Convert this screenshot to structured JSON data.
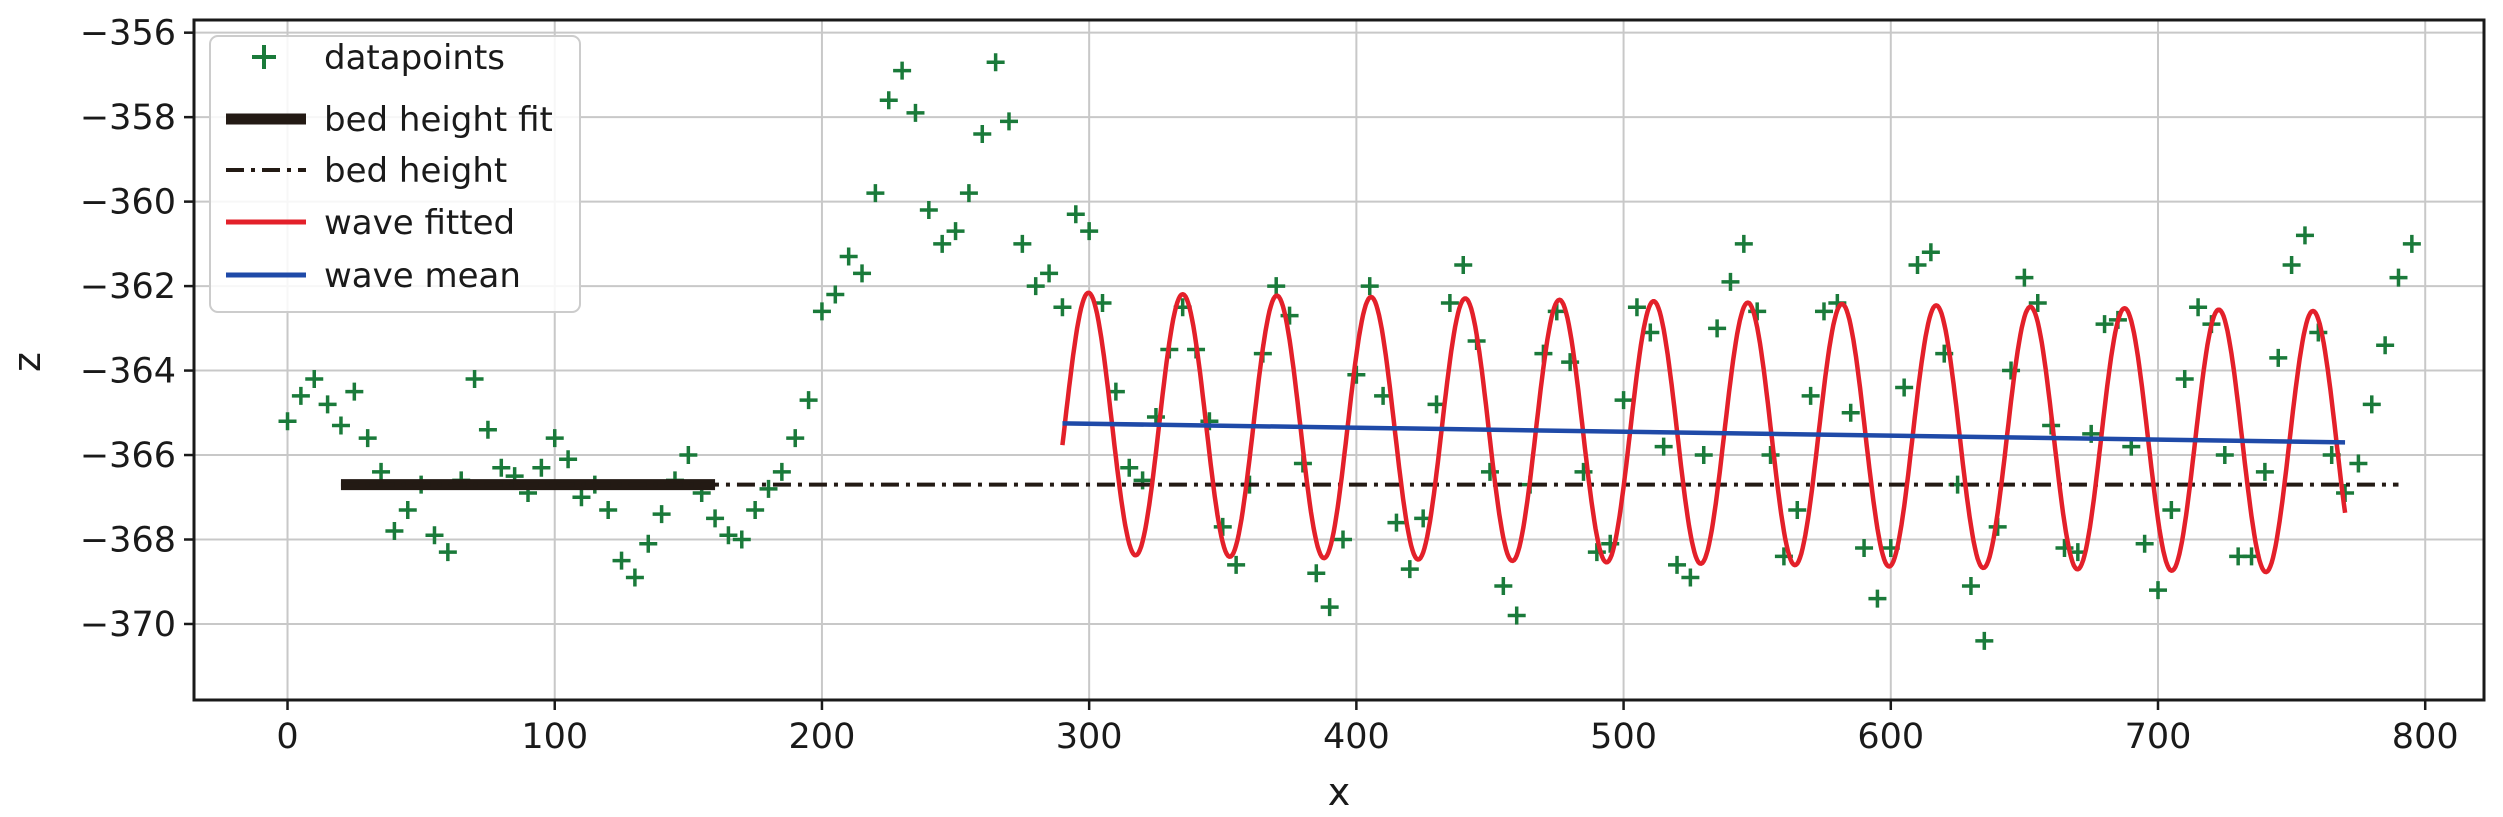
{
  "chart_data": {
    "type": "line",
    "title": "",
    "xlabel": "x",
    "ylabel": "z",
    "xlim": [
      -35,
      822
    ],
    "ylim": [
      -371.8,
      -355.7
    ],
    "xticks": [
      0,
      100,
      200,
      300,
      400,
      500,
      600,
      700,
      800
    ],
    "yticks": [
      -370,
      -368,
      -366,
      -364,
      -362,
      -360,
      -358,
      -356
    ],
    "grid": true,
    "legend_position": "upper-left",
    "series": [
      {
        "name": "datapoints",
        "style": "marker-plus",
        "color": "#1a7a3a",
        "points": [
          [
            0,
            -365.2
          ],
          [
            5,
            -364.6
          ],
          [
            10,
            -364.2
          ],
          [
            15,
            -364.8
          ],
          [
            20,
            -365.3
          ],
          [
            25,
            -364.5
          ],
          [
            30,
            -365.6
          ],
          [
            35,
            -366.4
          ],
          [
            40,
            -367.8
          ],
          [
            45,
            -367.3
          ],
          [
            50,
            -366.7
          ],
          [
            55,
            -367.9
          ],
          [
            60,
            -368.3
          ],
          [
            65,
            -366.6
          ],
          [
            70,
            -364.2
          ],
          [
            75,
            -365.4
          ],
          [
            80,
            -366.3
          ],
          [
            85,
            -366.5
          ],
          [
            90,
            -366.9
          ],
          [
            95,
            -366.3
          ],
          [
            100,
            -365.6
          ],
          [
            105,
            -366.1
          ],
          [
            110,
            -367.0
          ],
          [
            115,
            -366.7
          ],
          [
            120,
            -367.3
          ],
          [
            125,
            -368.5
          ],
          [
            130,
            -368.9
          ],
          [
            135,
            -368.1
          ],
          [
            140,
            -367.4
          ],
          [
            145,
            -366.6
          ],
          [
            150,
            -366.0
          ],
          [
            155,
            -366.9
          ],
          [
            160,
            -367.5
          ],
          [
            165,
            -367.9
          ],
          [
            170,
            -368.0
          ],
          [
            175,
            -367.3
          ],
          [
            180,
            -366.8
          ],
          [
            185,
            -366.4
          ],
          [
            190,
            -365.6
          ],
          [
            195,
            -364.7
          ],
          [
            200,
            -362.6
          ],
          [
            205,
            -362.2
          ],
          [
            210,
            -361.3
          ],
          [
            215,
            -361.7
          ],
          [
            220,
            -359.8
          ],
          [
            225,
            -357.6
          ],
          [
            230,
            -356.9
          ],
          [
            235,
            -357.9
          ],
          [
            240,
            -360.2
          ],
          [
            245,
            -361.0
          ],
          [
            250,
            -360.7
          ],
          [
            255,
            -359.8
          ],
          [
            260,
            -358.4
          ],
          [
            265,
            -356.7
          ],
          [
            270,
            -358.1
          ],
          [
            275,
            -361.0
          ],
          [
            280,
            -362.0
          ],
          [
            285,
            -361.7
          ],
          [
            290,
            -362.5
          ],
          [
            295,
            -360.3
          ],
          [
            300,
            -360.7
          ],
          [
            305,
            -362.4
          ],
          [
            310,
            -364.5
          ],
          [
            315,
            -366.3
          ],
          [
            320,
            -366.6
          ],
          [
            325,
            -365.1
          ],
          [
            330,
            -363.5
          ],
          [
            335,
            -362.5
          ],
          [
            340,
            -363.5
          ],
          [
            345,
            -365.2
          ],
          [
            350,
            -367.7
          ],
          [
            355,
            -368.6
          ],
          [
            360,
            -366.7
          ],
          [
            365,
            -363.6
          ],
          [
            370,
            -362.0
          ],
          [
            375,
            -362.7
          ],
          [
            380,
            -366.2
          ],
          [
            385,
            -368.8
          ],
          [
            390,
            -369.6
          ],
          [
            395,
            -368.0
          ],
          [
            400,
            -364.1
          ],
          [
            405,
            -362.0
          ],
          [
            410,
            -364.6
          ],
          [
            415,
            -367.6
          ],
          [
            420,
            -368.7
          ],
          [
            425,
            -367.5
          ],
          [
            430,
            -364.8
          ],
          [
            435,
            -362.4
          ],
          [
            440,
            -361.5
          ],
          [
            445,
            -363.3
          ],
          [
            450,
            -366.4
          ],
          [
            455,
            -369.1
          ],
          [
            460,
            -369.8
          ],
          [
            465,
            -366.7
          ],
          [
            470,
            -363.6
          ],
          [
            475,
            -362.6
          ],
          [
            480,
            -363.8
          ],
          [
            485,
            -366.4
          ],
          [
            490,
            -368.3
          ],
          [
            495,
            -368.1
          ],
          [
            500,
            -364.7
          ],
          [
            505,
            -362.5
          ],
          [
            510,
            -363.1
          ],
          [
            515,
            -365.8
          ],
          [
            520,
            -368.6
          ],
          [
            525,
            -368.9
          ],
          [
            530,
            -366.0
          ],
          [
            535,
            -363.0
          ],
          [
            540,
            -361.9
          ],
          [
            545,
            -361.0
          ],
          [
            550,
            -362.6
          ],
          [
            555,
            -366.0
          ],
          [
            560,
            -368.4
          ],
          [
            565,
            -367.3
          ],
          [
            570,
            -364.6
          ],
          [
            575,
            -362.6
          ],
          [
            580,
            -362.4
          ],
          [
            585,
            -365.0
          ],
          [
            590,
            -368.2
          ],
          [
            595,
            -369.4
          ],
          [
            600,
            -368.2
          ],
          [
            605,
            -364.4
          ],
          [
            610,
            -361.5
          ],
          [
            615,
            -361.2
          ],
          [
            620,
            -363.6
          ],
          [
            625,
            -366.7
          ],
          [
            630,
            -369.1
          ],
          [
            635,
            -370.4
          ],
          [
            640,
            -367.7
          ],
          [
            645,
            -364.0
          ],
          [
            650,
            -361.8
          ],
          [
            655,
            -362.4
          ],
          [
            660,
            -365.3
          ],
          [
            665,
            -368.2
          ],
          [
            670,
            -368.3
          ],
          [
            675,
            -365.5
          ],
          [
            680,
            -362.9
          ],
          [
            685,
            -362.8
          ],
          [
            690,
            -365.8
          ],
          [
            695,
            -368.1
          ],
          [
            700,
            -369.2
          ],
          [
            705,
            -367.3
          ],
          [
            710,
            -364.2
          ],
          [
            715,
            -362.5
          ],
          [
            720,
            -362.9
          ],
          [
            725,
            -366.0
          ],
          [
            730,
            -368.4
          ],
          [
            735,
            -368.4
          ],
          [
            740,
            -366.4
          ],
          [
            745,
            -363.7
          ],
          [
            750,
            -361.5
          ],
          [
            755,
            -360.8
          ],
          [
            760,
            -363.1
          ],
          [
            765,
            -366.0
          ],
          [
            770,
            -366.9
          ],
          [
            775,
            -366.2
          ],
          [
            780,
            -364.8
          ],
          [
            785,
            -363.4
          ],
          [
            790,
            -361.8
          ],
          [
            795,
            -361.0
          ]
        ]
      },
      {
        "name": "bed height fit",
        "style": "thick-line",
        "color": "#231a14",
        "x": [
          20,
          160
        ],
        "y": [
          -366.7,
          -366.7
        ]
      },
      {
        "name": "bed height",
        "style": "dash-dot",
        "color": "#231a14",
        "x": [
          20,
          790
        ],
        "y": [
          -366.7,
          -366.7
        ]
      },
      {
        "name": "wave fitted",
        "style": "line",
        "color": "#e3202a",
        "x_range": [
          290,
          770
        ],
        "mean_start": -365.25,
        "mean_end": -365.7,
        "amplitude": 3.1,
        "wavelength": 35.25,
        "crest_x": 335
      },
      {
        "name": "wave mean",
        "style": "line",
        "color": "#1f4aa8",
        "x": [
          290,
          770
        ],
        "y": [
          -365.25,
          -365.7
        ]
      }
    ]
  }
}
